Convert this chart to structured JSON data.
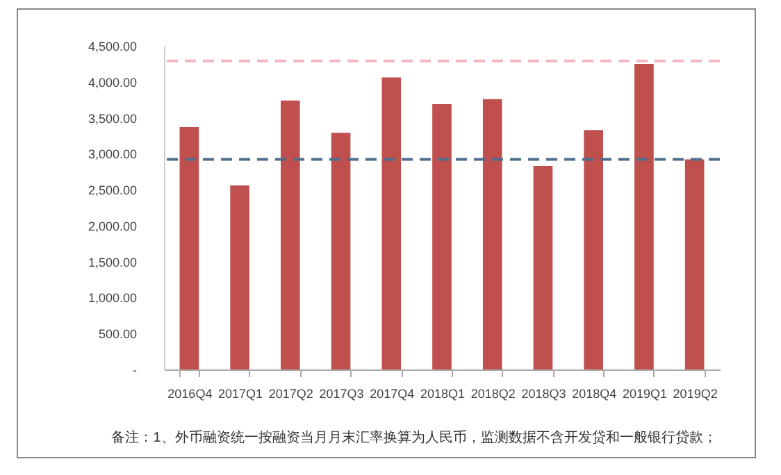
{
  "chart_data": {
    "type": "bar",
    "categories": [
      "2016Q4",
      "2017Q1",
      "2017Q2",
      "2017Q3",
      "2017Q4",
      "2018Q1",
      "2018Q2",
      "2018Q3",
      "2018Q4",
      "2019Q1",
      "2019Q2"
    ],
    "values": [
      3370,
      2560,
      3740,
      3290,
      4060,
      3690,
      3760,
      2830,
      3330,
      4250,
      2920
    ],
    "color": "#c0504d",
    "ylim": [
      0,
      4500
    ],
    "yticks": [
      {
        "value": 0,
        "label": "-"
      },
      {
        "value": 500,
        "label": "500.00"
      },
      {
        "value": 1000,
        "label": "1,000.00"
      },
      {
        "value": 1500,
        "label": "1,500.00"
      },
      {
        "value": 2000,
        "label": "2,000.00"
      },
      {
        "value": 2500,
        "label": "2,500.00"
      },
      {
        "value": 3000,
        "label": "3,000.00"
      },
      {
        "value": 3500,
        "label": "3,500.00"
      },
      {
        "value": 4000,
        "label": "4,000.00"
      },
      {
        "value": 4500,
        "label": "4,500.00"
      }
    ],
    "ref_lines": [
      {
        "axis": "y",
        "value": 4290,
        "color": "#f2b8c0",
        "line_style": "dashed"
      },
      {
        "axis": "y",
        "value": 2920,
        "color": "#4f6d8c",
        "line_style": "dashed"
      }
    ],
    "grid": false,
    "annotations": [
      "备注：1、外币融资统一按融资当月月末汇率换算为人民币，监测数据不含开发贷和一般银行贷款；"
    ]
  }
}
